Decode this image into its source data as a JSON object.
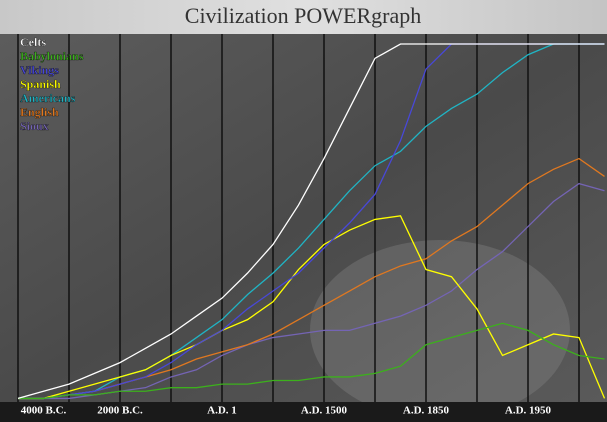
{
  "chart_data": {
    "type": "line",
    "title": "Civilization POWERgraph",
    "categories": [
      null,
      "4000 B.C.",
      null,
      null,
      "2000 B.C.",
      null,
      null,
      null,
      "A.D. 1",
      null,
      null,
      null,
      "A.D. 1500",
      null,
      null,
      null,
      "A.D. 1850",
      null,
      null,
      null,
      "A.D. 1950",
      null,
      null,
      null
    ],
    "ylim": [
      0,
      100
    ],
    "series": [
      {
        "name": "Celts",
        "color": "#ffffff",
        "values": [
          1,
          3,
          5,
          8,
          11,
          15,
          19,
          24,
          29,
          36,
          44,
          55,
          68,
          82,
          96,
          100,
          100,
          100,
          100,
          100,
          100,
          100,
          100,
          100
        ]
      },
      {
        "name": "Babylonians",
        "color": "#3cb01c",
        "values": [
          1,
          1,
          2,
          2,
          3,
          3,
          4,
          4,
          5,
          5,
          6,
          6,
          7,
          7,
          8,
          10,
          16,
          18,
          20,
          22,
          20,
          16,
          13,
          12
        ]
      },
      {
        "name": "Vikings",
        "color": "#4848d8",
        "values": [
          1,
          1,
          2,
          3,
          5,
          7,
          11,
          16,
          20,
          26,
          31,
          36,
          43,
          50,
          58,
          73,
          93,
          100,
          100,
          100,
          100,
          100,
          100,
          100
        ]
      },
      {
        "name": "Spanish",
        "color": "#ffff00",
        "values": [
          1,
          1,
          3,
          5,
          7,
          9,
          13,
          16,
          20,
          23,
          28,
          37,
          44,
          48,
          51,
          52,
          37,
          35,
          26,
          13,
          16,
          19,
          18,
          1
        ]
      },
      {
        "name": "Americans",
        "color": "#20b4c4",
        "values": [
          1,
          1,
          2,
          3,
          7,
          9,
          13,
          18,
          23,
          30,
          36,
          43,
          51,
          59,
          66,
          70,
          77,
          82,
          86,
          92,
          97,
          100,
          100,
          100
        ]
      },
      {
        "name": "English",
        "color": "#e07820",
        "values": [
          1,
          1,
          2,
          3,
          5,
          7,
          9,
          12,
          14,
          16,
          19,
          23,
          27,
          31,
          35,
          38,
          40,
          45,
          49,
          55,
          61,
          65,
          68,
          63
        ]
      },
      {
        "name": "Sioux",
        "color": "#7464b4",
        "values": [
          1,
          1,
          1,
          2,
          3,
          4,
          7,
          9,
          13,
          16,
          18,
          19,
          20,
          20,
          22,
          24,
          27,
          31,
          37,
          42,
          49,
          56,
          61,
          59
        ]
      }
    ]
  }
}
